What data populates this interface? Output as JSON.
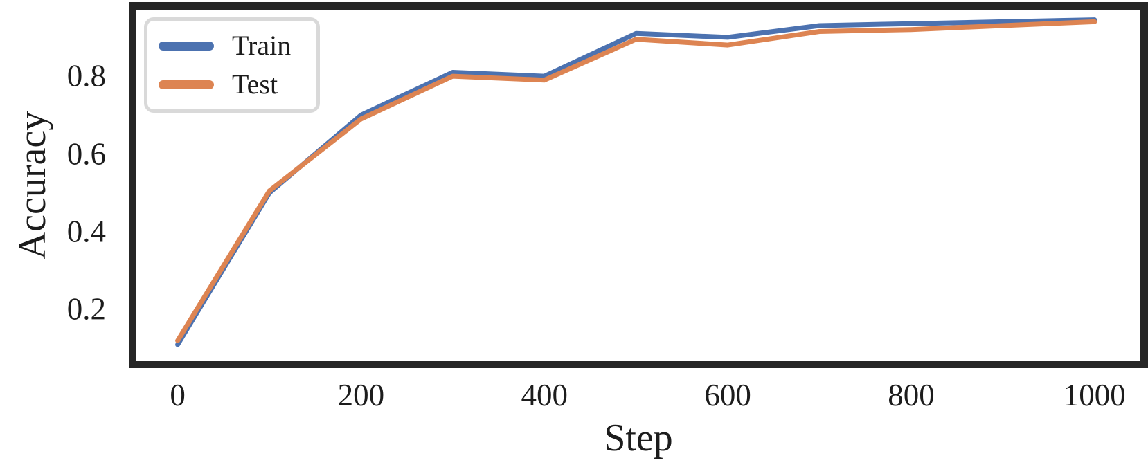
{
  "figure": {
    "background": "#ffffff",
    "frame_color": "#262626",
    "text_color": "#1c1c1c",
    "legend_border_color": "#d9d9d9"
  },
  "chart_data": {
    "type": "line",
    "title": "",
    "xlabel": "Step",
    "ylabel": "Accuracy",
    "x": [
      0,
      100,
      200,
      300,
      400,
      500,
      600,
      700,
      800,
      900,
      1000
    ],
    "series": [
      {
        "name": "Train",
        "color": "#4C72B0",
        "values": [
          0.11,
          0.5,
          0.7,
          0.81,
          0.8,
          0.91,
          0.9,
          0.93,
          0.935,
          0.94,
          0.945
        ]
      },
      {
        "name": "Test",
        "color": "#DD8452",
        "values": [
          0.12,
          0.505,
          0.69,
          0.8,
          0.79,
          0.895,
          0.88,
          0.915,
          0.92,
          0.93,
          0.94
        ]
      }
    ],
    "xlim": [
      -45,
      1050
    ],
    "ylim": [
      0.069,
      0.971
    ],
    "x_ticks": [
      0,
      200,
      400,
      600,
      800,
      1000
    ],
    "x_tick_labels": [
      "0",
      "200",
      "400",
      "600",
      "800",
      "1000"
    ],
    "y_ticks": [
      0.2,
      0.4,
      0.6,
      0.8
    ],
    "y_tick_labels": [
      "0.2",
      "0.4",
      "0.6",
      "0.8"
    ],
    "grid": false,
    "legend": {
      "position": "upper-left",
      "entries": [
        "Train",
        "Test"
      ]
    },
    "line_width": 7
  }
}
